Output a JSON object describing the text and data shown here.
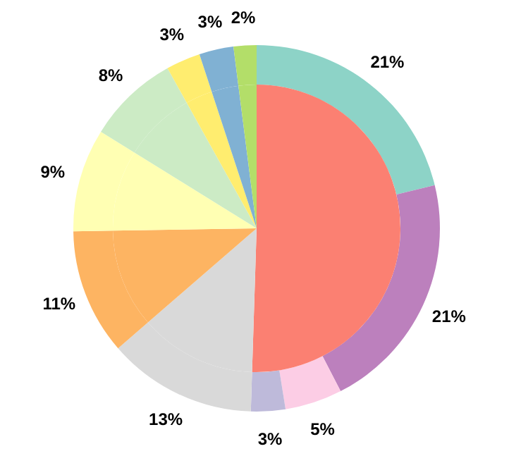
{
  "chart_data": {
    "type": "pie",
    "series": [
      {
        "values": [
          21,
          21,
          5,
          3,
          13,
          11,
          9,
          8,
          3,
          3,
          2
        ],
        "value_labels": [
          "21%",
          "21%",
          "5%",
          "3%",
          "13%",
          "11%",
          "9%",
          "8%",
          "3%",
          "3%",
          "2%"
        ],
        "colors": [
          "#8dd3c7",
          "#bc80bd",
          "#fccde5",
          "#bebada",
          "#d9d9d9",
          "#fdb462",
          "#ffffb3",
          "#ccebc5",
          "#ffed6f",
          "#80b1d3",
          "#b3de69"
        ]
      },
      {
        "values": [
          50,
          13,
          11,
          9,
          8,
          3,
          3,
          2
        ],
        "colors": [
          "#fb8072",
          "#d9d9d9",
          "#fdb462",
          "#ffffb3",
          "#ccebc5",
          "#ffed6f",
          "#80b1d3",
          "#b3de69"
        ]
      }
    ]
  }
}
